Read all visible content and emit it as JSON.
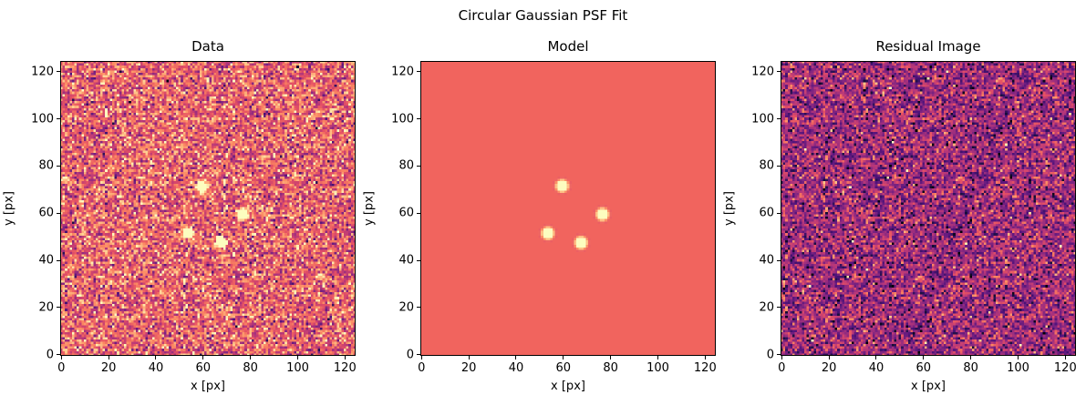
{
  "figure_title": "Circular Gaussian PSF Fit",
  "chart_data": [
    {
      "type": "heatmap",
      "title": "Data",
      "xlabel": "x [px]",
      "ylabel": "y [px]",
      "xlim": [
        0,
        125
      ],
      "ylim": [
        0,
        125
      ],
      "xticks": [
        0,
        20,
        40,
        60,
        80,
        100,
        120
      ],
      "yticks": [
        0,
        20,
        40,
        60,
        80,
        100,
        120
      ],
      "colormap": "magma",
      "content": "noise + sources",
      "sources": [
        {
          "x": 60,
          "y": 72
        },
        {
          "x": 77,
          "y": 60
        },
        {
          "x": 54,
          "y": 52
        },
        {
          "x": 68,
          "y": 48
        }
      ]
    },
    {
      "type": "heatmap",
      "title": "Model",
      "xlabel": "x [px]",
      "ylabel": "y [px]",
      "xlim": [
        0,
        125
      ],
      "ylim": [
        0,
        125
      ],
      "xticks": [
        0,
        20,
        40,
        60,
        80,
        100,
        120
      ],
      "yticks": [
        0,
        20,
        40,
        60,
        80,
        100,
        120
      ],
      "colormap": "magma",
      "background_color": "#f1645e",
      "content": "sources",
      "sources": [
        {
          "x": 60,
          "y": 72
        },
        {
          "x": 77,
          "y": 60
        },
        {
          "x": 54,
          "y": 52
        },
        {
          "x": 68,
          "y": 48
        }
      ]
    },
    {
      "type": "heatmap",
      "title": "Residual Image",
      "xlabel": "x [px]",
      "ylabel": "y [px]",
      "xlim": [
        0,
        125
      ],
      "ylim": [
        0,
        125
      ],
      "xticks": [
        0,
        20,
        40,
        60,
        80,
        100,
        120
      ],
      "yticks": [
        0,
        20,
        40,
        60,
        80,
        100,
        120
      ],
      "colormap": "magma",
      "content": "noise"
    }
  ]
}
